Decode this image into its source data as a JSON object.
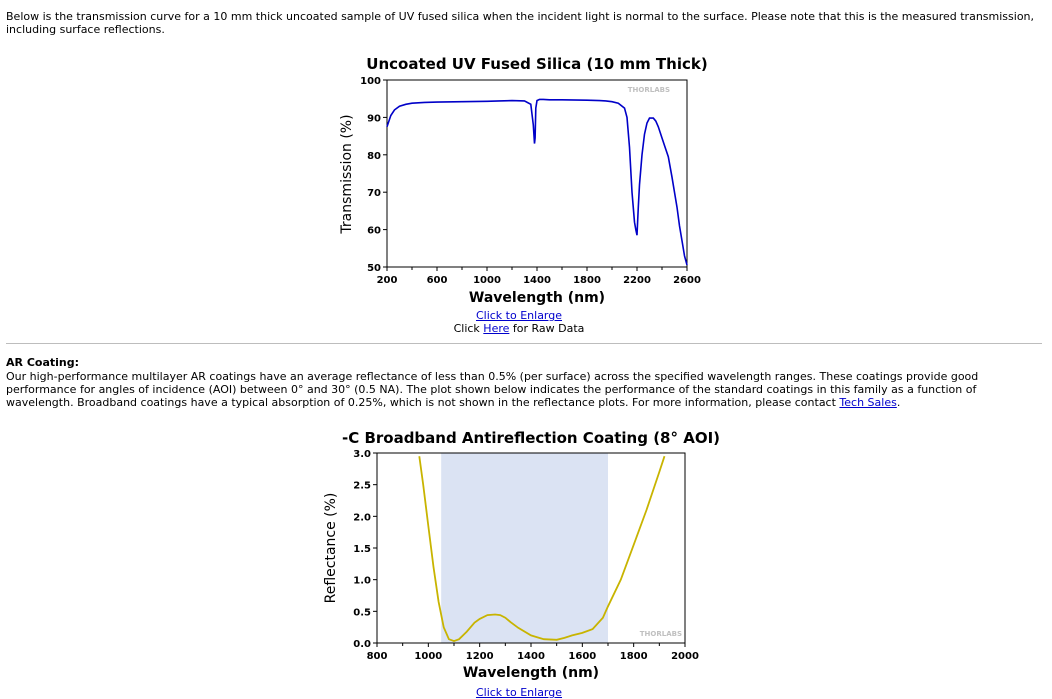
{
  "intro_text": "Below is the transmission curve for a 10 mm thick uncoated sample of UV fused silica when the incident light is normal to the surface. Please note that this is the measured transmission, including surface reflections.",
  "ar": {
    "heading": "AR Coating:",
    "body": "Our high-performance multilayer AR coatings have an average reflectance of less than 0.5% (per surface) across the specified wavelength ranges. These coatings provide good performance for angles of incidence (AOI) between 0° and 30° (0.5 NA). The plot shown below indicates the performance of the standard coatings in this family as a function of wavelength. Broadband coatings have a typical absorption of 0.25%, which is not shown in the reflectance plots. For more information, please contact ",
    "tech_sales_link": "Tech Sales",
    "period": "."
  },
  "links": {
    "enlarge_1": "Click to Enlarge",
    "raw_prefix": "Click ",
    "raw_link": "Here",
    "raw_suffix": " for Raw Data",
    "enlarge_2": "Click to Enlarge"
  },
  "chart_data": [
    {
      "type": "line",
      "title": "Uncoated UV Fused Silica (10 mm Thick)",
      "xlabel": "Wavelength (nm)",
      "ylabel": "Transmission (%)",
      "xlim": [
        200,
        2600
      ],
      "ylim": [
        50,
        100
      ],
      "xticks": [
        200,
        600,
        1000,
        1400,
        1800,
        2200,
        2600
      ],
      "yticks": [
        50,
        60,
        70,
        80,
        90,
        100
      ],
      "watermark": "THORLABS",
      "color": "#0000c8",
      "series": [
        {
          "x": [
            200,
            230,
            260,
            300,
            350,
            400,
            500,
            600,
            800,
            1000,
            1100,
            1200,
            1300,
            1350,
            1370,
            1380,
            1385,
            1390,
            1400,
            1420,
            1450,
            1500,
            1600,
            1800,
            1900,
            1950,
            2000,
            2050,
            2100,
            2120,
            2140,
            2160,
            2180,
            2190,
            2200,
            2205,
            2210,
            2220,
            2240,
            2260,
            2280,
            2300,
            2330,
            2350,
            2370,
            2400,
            2420,
            2450,
            2480,
            2500,
            2520,
            2540,
            2560,
            2580,
            2600
          ],
          "y": [
            87.5,
            90.5,
            92.0,
            93.0,
            93.5,
            93.8,
            94.0,
            94.1,
            94.2,
            94.3,
            94.4,
            94.5,
            94.4,
            93.5,
            88.0,
            83.0,
            84.5,
            92.5,
            94.5,
            94.8,
            94.8,
            94.7,
            94.7,
            94.6,
            94.5,
            94.4,
            94.2,
            93.8,
            92.5,
            90.0,
            82.0,
            70.0,
            62.0,
            60.0,
            58.5,
            62.0,
            66.0,
            72.0,
            80.0,
            85.5,
            88.5,
            89.8,
            89.8,
            89.0,
            87.5,
            84.5,
            82.5,
            79.5,
            74.0,
            70.0,
            66.0,
            61.0,
            57.0,
            53.0,
            50.5
          ]
        }
      ]
    },
    {
      "type": "line",
      "title": "-C Broadband Antireflection Coating (8° AOI)",
      "xlabel": "Wavelength (nm)",
      "ylabel": "Reflectance (%)",
      "xlim": [
        800,
        2000
      ],
      "ylim": [
        0,
        3.0
      ],
      "xticks": [
        800,
        1000,
        1200,
        1400,
        1600,
        1800,
        2000
      ],
      "yticks": [
        0.0,
        0.5,
        1.0,
        1.5,
        2.0,
        2.5,
        3.0
      ],
      "shaded_range": [
        1050,
        1700
      ],
      "watermark": "THORLABS",
      "color": "#c8b400",
      "series": [
        {
          "x": [
            965,
            980,
            1000,
            1020,
            1040,
            1060,
            1080,
            1100,
            1120,
            1150,
            1180,
            1200,
            1230,
            1260,
            1280,
            1300,
            1320,
            1350,
            1400,
            1450,
            1500,
            1530,
            1560,
            1600,
            1640,
            1680,
            1700,
            1750,
            1800,
            1850,
            1900,
            1920
          ],
          "y": [
            2.95,
            2.5,
            1.85,
            1.2,
            0.65,
            0.25,
            0.06,
            0.03,
            0.06,
            0.18,
            0.32,
            0.38,
            0.44,
            0.45,
            0.44,
            0.4,
            0.33,
            0.24,
            0.12,
            0.06,
            0.05,
            0.08,
            0.12,
            0.16,
            0.22,
            0.4,
            0.58,
            1.0,
            1.55,
            2.1,
            2.7,
            2.95
          ]
        }
      ]
    }
  ]
}
